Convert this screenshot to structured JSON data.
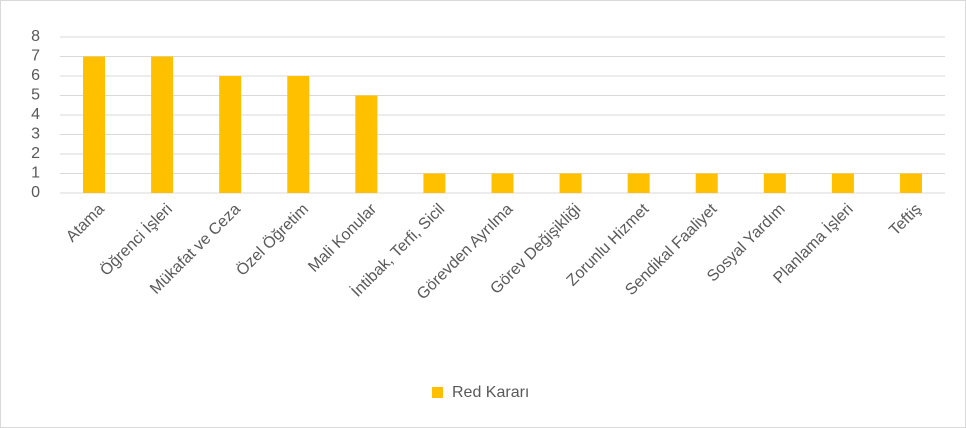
{
  "chart_data": {
    "type": "bar",
    "categories": [
      "Atama",
      "Öğrenci İşleri",
      "Mükafat ve Ceza",
      "Özel Öğretim",
      "Mali Konular",
      "İntibak, Terfi, Sicil",
      "Görevden Ayrılma",
      "Görev Değişikliği",
      "Zorunlu Hizmet",
      "Sendikal Faaliyet",
      "Sosyal Yardım",
      "Planlama İşleri",
      "Teftiş"
    ],
    "series": [
      {
        "name": "Red Kararı",
        "color": "#ffc000",
        "values": [
          7,
          7,
          6,
          6,
          5,
          1,
          1,
          1,
          1,
          1,
          1,
          1,
          1
        ]
      }
    ],
    "ylim": [
      0,
      8
    ],
    "yticks": [
      0,
      1,
      2,
      3,
      4,
      5,
      6,
      7,
      8
    ],
    "grid": true,
    "legend": "bottom"
  }
}
